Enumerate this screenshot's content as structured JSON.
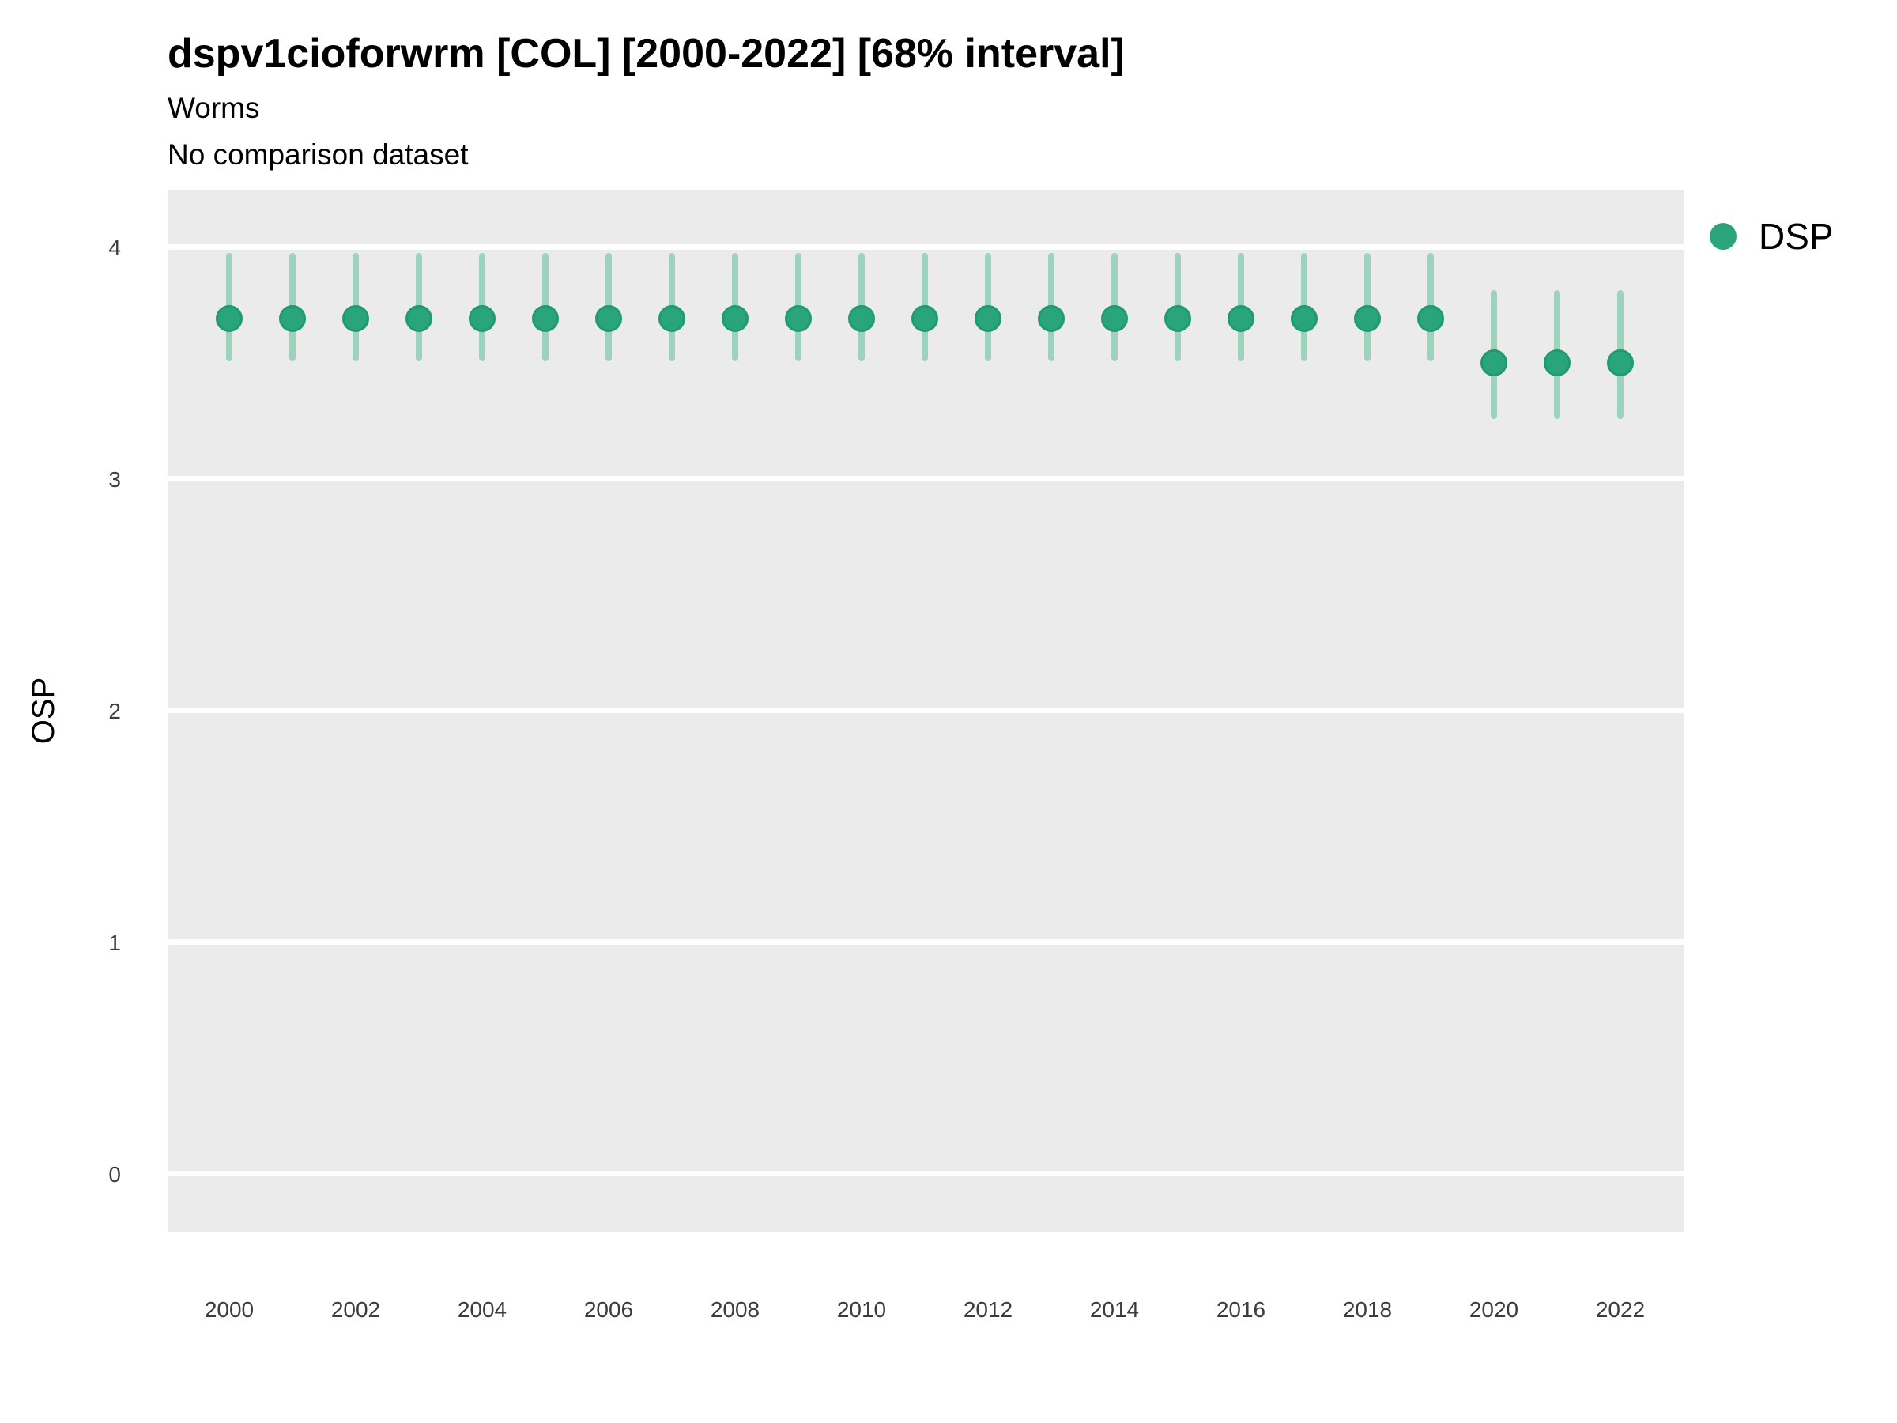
{
  "header": {
    "title": "dspv1cioforwrm [COL] [2000-2022] [68% interval]",
    "subtitle": "Worms",
    "note": "No comparison dataset"
  },
  "legend": {
    "items": [
      {
        "label": "DSP",
        "color": "#2aa47a"
      }
    ]
  },
  "chart_data": {
    "type": "scatter",
    "variant": "pointrange",
    "title": "dspv1cioforwrm [COL] [2000-2022] [68% interval]",
    "subtitle": "Worms",
    "note": "No comparison dataset",
    "interval_level": "68%",
    "xlabel": "",
    "ylabel": "OSP",
    "legend_position": "right",
    "grid": "horizontal-major-only",
    "xlim": [
      1999,
      2023
    ],
    "ylim": [
      -0.25,
      4.25
    ],
    "x_tick_labels": [
      2000,
      2002,
      2004,
      2006,
      2008,
      2010,
      2012,
      2014,
      2016,
      2018,
      2020,
      2022
    ],
    "y_tick_labels": [
      0,
      1,
      2,
      3,
      4
    ],
    "series": [
      {
        "name": "DSP",
        "x": [
          2000,
          2001,
          2002,
          2003,
          2004,
          2005,
          2006,
          2007,
          2008,
          2009,
          2010,
          2011,
          2012,
          2013,
          2014,
          2015,
          2016,
          2017,
          2018,
          2019,
          2020,
          2021,
          2022
        ],
        "y": [
          3.69,
          3.69,
          3.69,
          3.69,
          3.69,
          3.69,
          3.69,
          3.69,
          3.69,
          3.69,
          3.69,
          3.69,
          3.69,
          3.69,
          3.69,
          3.69,
          3.69,
          3.69,
          3.69,
          3.69,
          3.5,
          3.5,
          3.5
        ],
        "lower": [
          3.52,
          3.52,
          3.52,
          3.52,
          3.52,
          3.52,
          3.52,
          3.52,
          3.52,
          3.52,
          3.52,
          3.52,
          3.52,
          3.52,
          3.52,
          3.52,
          3.52,
          3.52,
          3.52,
          3.52,
          3.27,
          3.27,
          3.27
        ],
        "upper": [
          3.96,
          3.96,
          3.96,
          3.96,
          3.96,
          3.96,
          3.96,
          3.96,
          3.96,
          3.96,
          3.96,
          3.96,
          3.96,
          3.96,
          3.96,
          3.96,
          3.96,
          3.96,
          3.96,
          3.96,
          3.8,
          3.8,
          3.8
        ]
      }
    ],
    "colors": {
      "point_fill": "#2aa47a",
      "point_stroke": "#1f9c6c",
      "interval": "#9dd3bc",
      "panel_bg": "#ebebeb",
      "grid": "#ffffff",
      "axis_text": "#3c3c3c",
      "text": "#000000"
    }
  }
}
